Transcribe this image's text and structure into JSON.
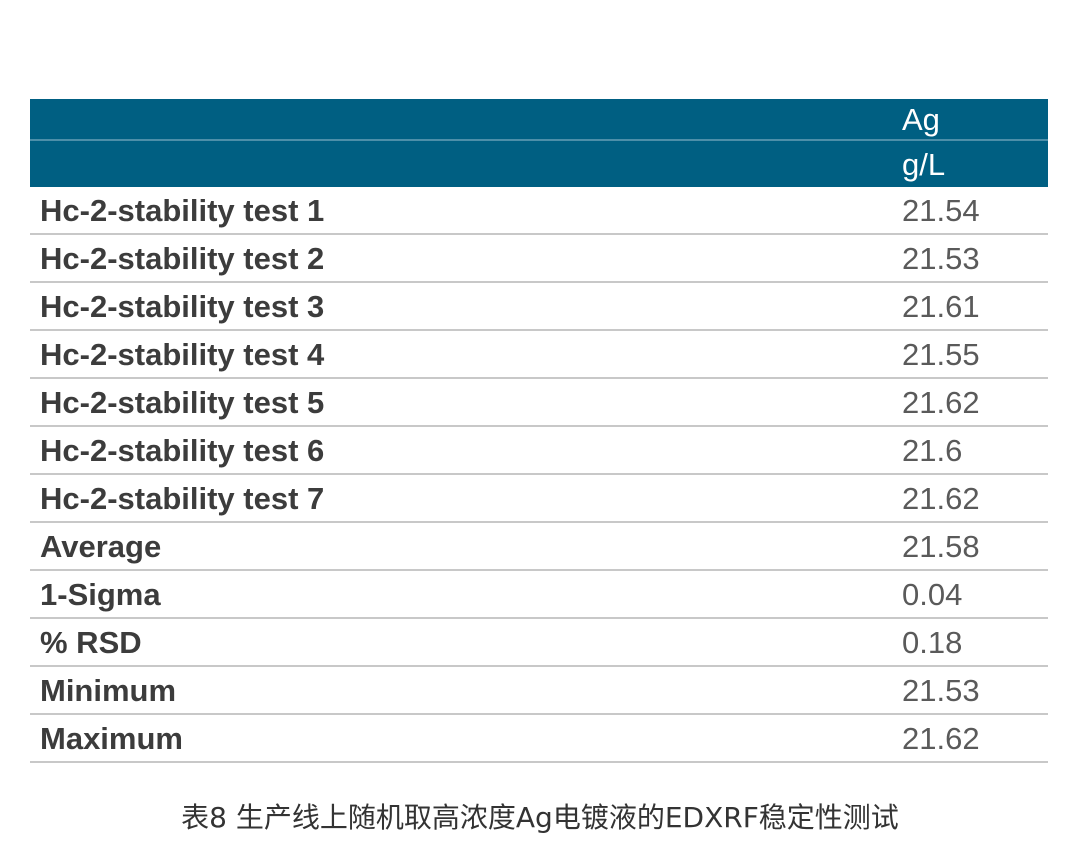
{
  "table": {
    "header": {
      "element": "Ag",
      "unit": "g/L"
    },
    "rows": [
      {
        "label": "Hc-2-stability test 1",
        "value": "21.54"
      },
      {
        "label": "Hc-2-stability test 2",
        "value": "21.53"
      },
      {
        "label": "Hc-2-stability test 3",
        "value": "21.61"
      },
      {
        "label": "Hc-2-stability test 4",
        "value": "21.55"
      },
      {
        "label": "Hc-2-stability test 5",
        "value": "21.62"
      },
      {
        "label": "Hc-2-stability test 6",
        "value": "21.6"
      },
      {
        "label": "Hc-2-stability test 7",
        "value": "21.62"
      },
      {
        "label": "Average",
        "value": "21.58"
      },
      {
        "label": "1-Sigma",
        "value": "0.04"
      },
      {
        "label": "% RSD",
        "value": "0.18"
      },
      {
        "label": "Minimum",
        "value": "21.53"
      },
      {
        "label": "Maximum",
        "value": "21.62"
      }
    ]
  },
  "caption": "表8 生产线上随机取高浓度Ag电镀液的EDXRF稳定性测试",
  "colors": {
    "header_bg": "#005f82",
    "header_text": "#ffffff",
    "row_divider": "#c8c8c8"
  }
}
